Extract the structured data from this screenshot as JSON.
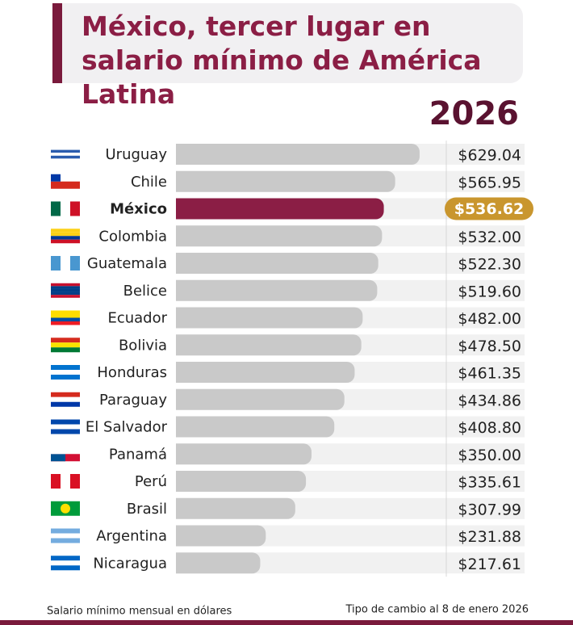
{
  "chart_data": {
    "type": "bar",
    "orientation": "horizontal",
    "title": "México, tercer lugar en salario mínimo de América Latina",
    "subtitle": "2026",
    "categories": [
      "Uruguay",
      "Chile",
      "México",
      "Colombia",
      "Guatemala",
      "Belice",
      "Ecuador",
      "Bolivia",
      "Honduras",
      "Paraguay",
      "El Salvador",
      "Panamá",
      "Perú",
      "Brasil",
      "Argentina",
      "Nicaragua"
    ],
    "values": [
      629.04,
      565.95,
      536.62,
      532.0,
      522.3,
      519.6,
      482.0,
      478.5,
      461.35,
      434.86,
      408.8,
      350.0,
      335.61,
      307.99,
      231.88,
      217.61
    ],
    "value_labels": [
      "$629.04",
      "$565.95",
      "$536.62",
      "$532.00",
      "$522.30",
      "$519.60",
      "$482.00",
      "$478.50",
      "$461.35",
      "$434.86",
      "$408.80",
      "$350.00",
      "$335.61",
      "$307.99",
      "$231.88",
      "$217.61"
    ],
    "color": "#c9c9c9",
    "highlight": "México",
    "highlight_color": "#8b1e45",
    "highlight_label_color": "#c9962e",
    "notes": [
      "Salario mínimo mensual en dólares",
      "Tipo de cambio al 8 de enero 2026"
    ]
  }
}
